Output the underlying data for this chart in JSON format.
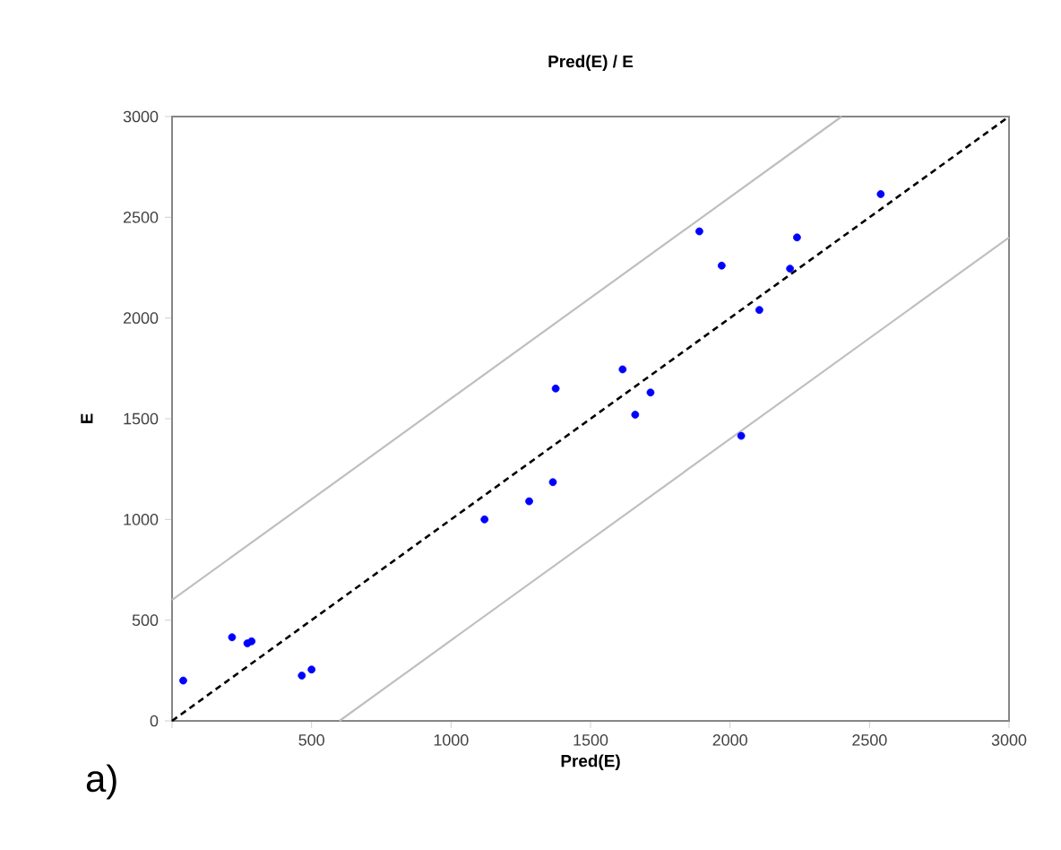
{
  "chart_data": {
    "type": "scatter",
    "title": "Pred(E) / E",
    "xlabel": "Pred(E)",
    "ylabel": "E",
    "annotations": [
      "a)"
    ],
    "series": [
      {
        "type": "line",
        "color": "#bfbfbf",
        "line_style": "solid",
        "marker": "none",
        "x": [
          0,
          2400
        ],
        "values": [
          600,
          3000
        ]
      },
      {
        "type": "line",
        "color": "#bfbfbf",
        "line_style": "solid",
        "marker": "none",
        "x": [
          600,
          3000
        ],
        "values": [
          0,
          2400
        ]
      },
      {
        "type": "line",
        "color": "#000000",
        "line_style": "dashed",
        "marker": "none",
        "x": [
          0,
          3000
        ],
        "values": [
          0,
          3000
        ]
      },
      {
        "color": "#0000ff",
        "marker": "circle",
        "x": [
          40,
          215,
          270,
          285,
          465,
          500,
          1120,
          1280,
          1365,
          1375,
          1615,
          1660,
          1715,
          1890,
          1970,
          2040,
          2105,
          2215,
          2240,
          2540
        ],
        "values": [
          200,
          415,
          385,
          395,
          225,
          255,
          1000,
          1090,
          1185,
          1650,
          1745,
          1520,
          1630,
          2430,
          2260,
          1415,
          2040,
          2245,
          2400,
          2615
        ]
      }
    ],
    "xlim": [
      0,
      3000
    ],
    "ylim": [
      0,
      3000
    ],
    "xticks": [
      {
        "value": 0,
        "label": null
      },
      500,
      1000,
      1500,
      2000,
      2500,
      3000
    ],
    "yticks": [
      0,
      500,
      1000,
      1500,
      2000,
      2500,
      3000
    ],
    "grid": false
  }
}
